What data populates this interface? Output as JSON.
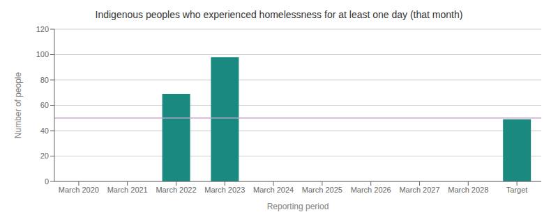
{
  "chart_data": {
    "type": "bar",
    "title": "Indigenous peoples who experienced homelessness for at least one day (that month)",
    "xlabel": "Reporting period",
    "ylabel": "Number of people",
    "categories": [
      "March 2020",
      "March 2021",
      "March 2022",
      "March 2023",
      "March 2024",
      "March 2025",
      "March 2026",
      "March 2027",
      "March 2028",
      "Target"
    ],
    "values": [
      0,
      0,
      69,
      98,
      0,
      0,
      0,
      0,
      0,
      49
    ],
    "color": "#1a8a80",
    "hline": {
      "y": 50,
      "color": "#c8a0d0"
    },
    "ylim": [
      0,
      120
    ],
    "yticks": [
      0,
      20,
      40,
      60,
      80,
      100,
      120
    ],
    "grid": true
  }
}
